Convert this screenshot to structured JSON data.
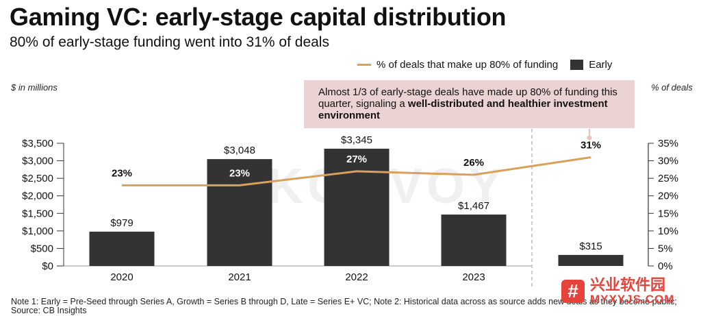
{
  "header": {
    "title": "Gaming VC: early-stage capital distribution",
    "subtitle": "80% of early-stage funding went into 31% of deals"
  },
  "legend": {
    "line_label": "% of deals that make up 80% of funding",
    "bar_label": "Early"
  },
  "axis_units": {
    "left": "$ in millions",
    "right": "% of deals"
  },
  "annotation": {
    "text_plain": "Almost 1/3 of early-stage deals have made up 80% of funding this quarter, signaling a ",
    "text_bold": "well-distributed and healthier investment environment"
  },
  "note": "Note 1: Early = Pre-Seed through Series A, Growth = Series B through D, Late = Series E+ VC; Note 2: Historical data across as source adds new deals as they become public; Source: CB Insights",
  "watermarks": {
    "background": "KONVOY",
    "site_icon": "#",
    "site_cn": "兴业软件园",
    "site_en": "MYXYJS.COM"
  },
  "colors": {
    "bar": "#333333",
    "line": "#D9A05B",
    "annotation_bg": "#EBD3D3"
  },
  "chart_data": {
    "type": "bar",
    "categories": [
      "2020",
      "2021",
      "2022",
      "2023",
      ""
    ],
    "series": [
      {
        "name": "Early",
        "type": "bar",
        "axis": "left",
        "values": [
          979,
          3048,
          3345,
          1467,
          315
        ],
        "labels": [
          "$979",
          "$3,048",
          "$3,345",
          "$1,467",
          "$315"
        ]
      },
      {
        "name": "% of deals that make up 80% of funding",
        "type": "line",
        "axis": "right",
        "values": [
          23,
          23,
          27,
          26,
          31
        ],
        "labels": [
          "23%",
          "23%",
          "27%",
          "26%",
          "31%"
        ]
      }
    ],
    "y_left": {
      "min": 0,
      "max": 3500,
      "ticks": [
        0,
        500,
        1000,
        1500,
        2000,
        2500,
        3000,
        3500
      ],
      "tick_labels": [
        "$0",
        "$500",
        "$1,000",
        "$1,500",
        "$2,000",
        "$2,500",
        "$3,000",
        "$3,500"
      ]
    },
    "y_right": {
      "min": 0,
      "max": 35,
      "ticks": [
        0,
        5,
        10,
        15,
        20,
        25,
        30,
        35
      ],
      "tick_labels": [
        "0%",
        "5%",
        "10%",
        "15%",
        "20%",
        "25%",
        "30%",
        "35%"
      ]
    },
    "grid": false,
    "legend_position": "top-right"
  }
}
